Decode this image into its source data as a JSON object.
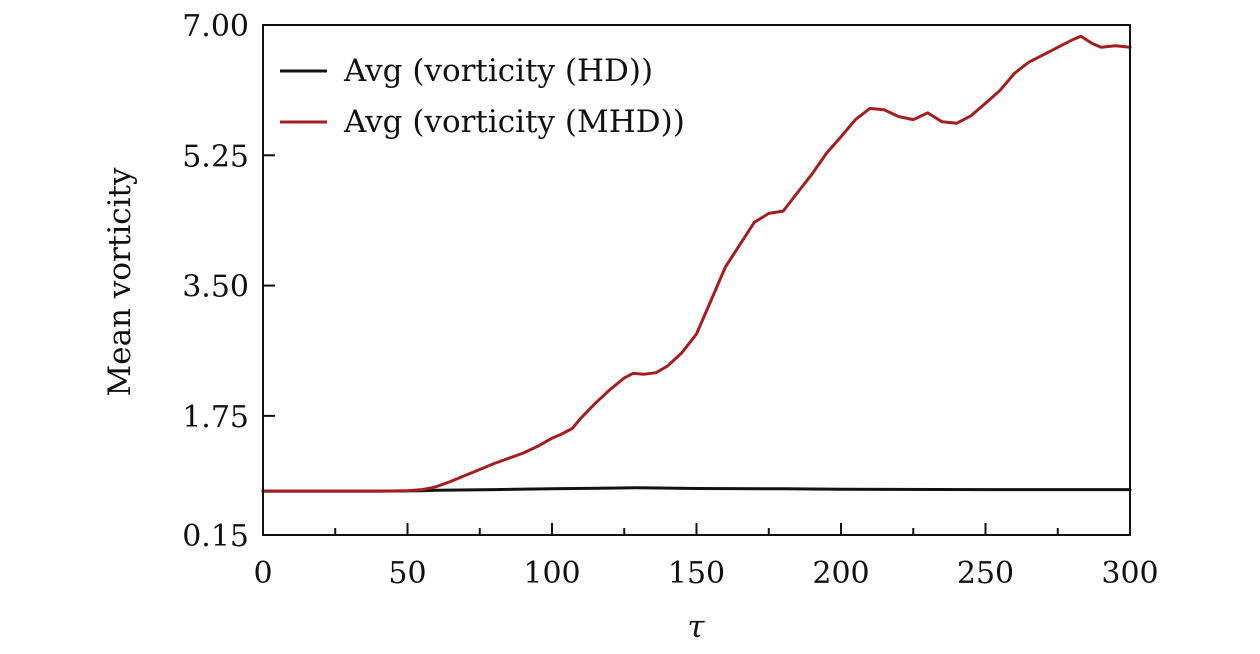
{
  "chart_data": {
    "type": "line",
    "title": "",
    "xlabel": "τ",
    "ylabel": "Mean vorticity",
    "xlim": [
      0,
      300
    ],
    "ylim": [
      0.15,
      7.0
    ],
    "xticks": [
      0,
      50,
      100,
      150,
      200,
      250,
      300
    ],
    "xtick_labels": [
      "0",
      "50",
      "100",
      "150",
      "200",
      "250",
      "300"
    ],
    "xminor_step": 25,
    "yticks": [
      0.15,
      1.75,
      3.5,
      5.25,
      7.0
    ],
    "ytick_labels": [
      "0.15",
      "1.75",
      "3.50",
      "5.25",
      "7.00"
    ],
    "legend_position": "top-left",
    "grid": false,
    "series": [
      {
        "name": "Avg (vorticity (HD))",
        "color": "#111111",
        "x": [
          0,
          20,
          40,
          55,
          60,
          80,
          100,
          120,
          130,
          150,
          180,
          200,
          250,
          300
        ],
        "y": [
          0.74,
          0.74,
          0.74,
          0.745,
          0.75,
          0.76,
          0.77,
          0.78,
          0.785,
          0.775,
          0.77,
          0.765,
          0.76,
          0.76
        ]
      },
      {
        "name": "Avg (vorticity (MHD))",
        "color": "#a31f1f",
        "x": [
          0,
          20,
          40,
          50,
          55,
          58,
          60,
          65,
          70,
          75,
          80,
          85,
          90,
          95,
          100,
          103,
          107,
          110,
          115,
          120,
          125,
          128,
          132,
          136,
          140,
          145,
          150,
          155,
          160,
          165,
          170,
          175,
          180,
          185,
          190,
          195,
          200,
          205,
          210,
          215,
          220,
          225,
          230,
          235,
          240,
          245,
          250,
          255,
          260,
          265,
          270,
          275,
          280,
          283,
          287,
          290,
          295,
          300
        ],
        "y": [
          0.74,
          0.74,
          0.74,
          0.745,
          0.76,
          0.78,
          0.8,
          0.87,
          0.95,
          1.03,
          1.11,
          1.18,
          1.25,
          1.34,
          1.45,
          1.5,
          1.58,
          1.72,
          1.92,
          2.1,
          2.26,
          2.32,
          2.31,
          2.33,
          2.42,
          2.6,
          2.85,
          3.3,
          3.75,
          4.05,
          4.35,
          4.47,
          4.5,
          4.75,
          5.0,
          5.28,
          5.5,
          5.73,
          5.88,
          5.86,
          5.77,
          5.73,
          5.82,
          5.7,
          5.68,
          5.78,
          5.95,
          6.12,
          6.35,
          6.5,
          6.6,
          6.7,
          6.8,
          6.85,
          6.75,
          6.7,
          6.72,
          6.7
        ]
      }
    ]
  }
}
